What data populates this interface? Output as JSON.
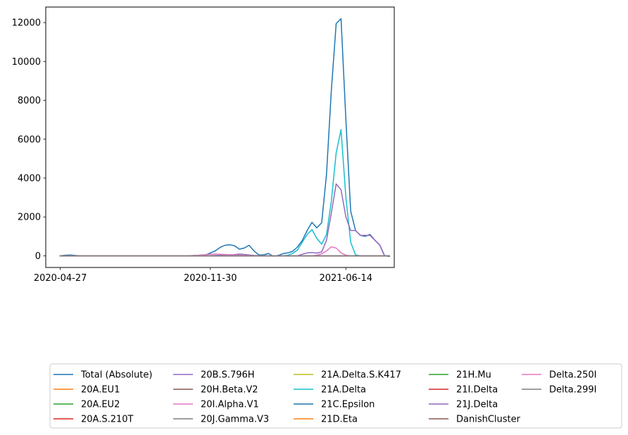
{
  "chart_data": {
    "type": "line",
    "title": "",
    "xlabel": "",
    "ylabel": "",
    "x_tick_labels": [
      "2020-04-27",
      "2020-11-30",
      "2021-06-14"
    ],
    "y_ticks": [
      0,
      2000,
      4000,
      6000,
      8000,
      10000,
      12000
    ],
    "ylim": [
      -600,
      12800
    ],
    "x_range_weeks": [
      -3,
      69
    ],
    "x_start_date": "2020-04-27",
    "grid": false,
    "legend_location": "below the plot, 5 columns",
    "legend_columns": 5,
    "series": [
      {
        "name": "Total (Absolute)",
        "color": "#1f77b4",
        "points": [
          [
            0,
            0
          ],
          [
            1,
            30
          ],
          [
            2,
            40
          ],
          [
            3,
            20
          ],
          [
            4,
            0
          ],
          [
            5,
            0
          ],
          [
            6,
            0
          ],
          [
            7,
            0
          ],
          [
            8,
            0
          ],
          [
            9,
            0
          ],
          [
            10,
            0
          ],
          [
            11,
            0
          ],
          [
            12,
            0
          ],
          [
            13,
            0
          ],
          [
            14,
            0
          ],
          [
            15,
            0
          ],
          [
            16,
            0
          ],
          [
            17,
            0
          ],
          [
            18,
            0
          ],
          [
            19,
            0
          ],
          [
            20,
            0
          ],
          [
            21,
            0
          ],
          [
            22,
            0
          ],
          [
            23,
            0
          ],
          [
            24,
            0
          ],
          [
            25,
            0
          ],
          [
            26,
            0
          ],
          [
            27,
            0
          ],
          [
            28,
            20
          ],
          [
            29,
            20
          ],
          [
            30,
            40
          ],
          [
            31,
            150
          ],
          [
            32,
            250
          ],
          [
            33,
            430
          ],
          [
            34,
            540
          ],
          [
            35,
            570
          ],
          [
            36,
            520
          ],
          [
            37,
            340
          ],
          [
            38,
            400
          ],
          [
            39,
            540
          ],
          [
            40,
            260
          ],
          [
            41,
            50
          ],
          [
            42,
            50
          ],
          [
            43,
            120
          ],
          [
            44,
            -20
          ],
          [
            45,
            20
          ],
          [
            46,
            110
          ],
          [
            47,
            150
          ],
          [
            48,
            230
          ],
          [
            49,
            450
          ],
          [
            50,
            790
          ],
          [
            51,
            1300
          ],
          [
            52,
            1720
          ],
          [
            53,
            1440
          ],
          [
            54,
            1700
          ],
          [
            55,
            4200
          ],
          [
            56,
            8500
          ],
          [
            57,
            11950
          ],
          [
            58,
            12200
          ],
          [
            59,
            7000
          ],
          [
            60,
            2300
          ],
          [
            61,
            1300
          ],
          [
            62,
            1050
          ],
          [
            63,
            1000
          ],
          [
            64,
            1100
          ],
          [
            65,
            800
          ],
          [
            66,
            550
          ],
          [
            67,
            0
          ],
          [
            68,
            -30
          ]
        ]
      },
      {
        "name": "20A.EU1",
        "color": "#ff7f0e",
        "points": [
          [
            0,
            0
          ],
          [
            68,
            0
          ]
        ]
      },
      {
        "name": "20A.EU2",
        "color": "#2ca02c",
        "points": [
          [
            0,
            0
          ],
          [
            68,
            0
          ]
        ]
      },
      {
        "name": "20A.S.210T",
        "color": "#d62728",
        "points": [
          [
            0,
            0
          ],
          [
            68,
            0
          ]
        ]
      },
      {
        "name": "20B.S.796H",
        "color": "#9467bd",
        "points": [
          [
            0,
            0
          ],
          [
            30,
            0
          ],
          [
            32,
            20
          ],
          [
            34,
            40
          ],
          [
            36,
            60
          ],
          [
            37,
            90
          ],
          [
            38,
            70
          ],
          [
            40,
            20
          ],
          [
            42,
            0
          ],
          [
            68,
            0
          ]
        ]
      },
      {
        "name": "20H.Beta.V2",
        "color": "#8c564b",
        "points": [
          [
            0,
            0
          ],
          [
            68,
            0
          ]
        ]
      },
      {
        "name": "20I.Alpha.V1",
        "color": "#e377c2",
        "points": [
          [
            0,
            0
          ],
          [
            26,
            0
          ],
          [
            28,
            20
          ],
          [
            30,
            60
          ],
          [
            32,
            100
          ],
          [
            34,
            70
          ],
          [
            36,
            40
          ],
          [
            38,
            30
          ],
          [
            40,
            10
          ],
          [
            42,
            0
          ],
          [
            52,
            0
          ],
          [
            53,
            30
          ],
          [
            54,
            100
          ],
          [
            55,
            250
          ],
          [
            56,
            460
          ],
          [
            57,
            400
          ],
          [
            58,
            150
          ],
          [
            59,
            30
          ],
          [
            60,
            0
          ],
          [
            68,
            0
          ]
        ]
      },
      {
        "name": "20J.Gamma.V3",
        "color": "#7f7f7f",
        "points": [
          [
            0,
            0
          ],
          [
            68,
            0
          ]
        ]
      },
      {
        "name": "21A.Delta.S.K417",
        "color": "#bcbd22",
        "points": [
          [
            0,
            0
          ],
          [
            68,
            0
          ]
        ]
      },
      {
        "name": "21A.Delta",
        "color": "#17becf",
        "points": [
          [
            0,
            0
          ],
          [
            46,
            0
          ],
          [
            47,
            30
          ],
          [
            48,
            120
          ],
          [
            49,
            300
          ],
          [
            50,
            700
          ],
          [
            51,
            1100
          ],
          [
            52,
            1350
          ],
          [
            53,
            900
          ],
          [
            54,
            600
          ],
          [
            55,
            1100
          ],
          [
            56,
            2800
          ],
          [
            57,
            5300
          ],
          [
            58,
            6500
          ],
          [
            59,
            3000
          ],
          [
            60,
            700
          ],
          [
            61,
            50
          ],
          [
            62,
            0
          ],
          [
            68,
            0
          ]
        ]
      },
      {
        "name": "21C.Epsilon",
        "color": "#1f77b4",
        "points": [
          [
            0,
            0
          ],
          [
            68,
            0
          ]
        ]
      },
      {
        "name": "21D.Eta",
        "color": "#ff7f0e",
        "points": [
          [
            0,
            0
          ],
          [
            68,
            0
          ]
        ]
      },
      {
        "name": "21H.Mu",
        "color": "#2ca02c",
        "points": [
          [
            0,
            0
          ],
          [
            68,
            0
          ]
        ]
      },
      {
        "name": "21I.Delta",
        "color": "#d62728",
        "points": [
          [
            0,
            0
          ],
          [
            68,
            0
          ]
        ]
      },
      {
        "name": "21J.Delta",
        "color": "#9467bd",
        "points": [
          [
            0,
            0
          ],
          [
            49,
            0
          ],
          [
            50,
            80
          ],
          [
            51,
            150
          ],
          [
            52,
            170
          ],
          [
            53,
            140
          ],
          [
            54,
            200
          ],
          [
            55,
            800
          ],
          [
            56,
            2200
          ],
          [
            57,
            3700
          ],
          [
            58,
            3400
          ],
          [
            59,
            2000
          ],
          [
            60,
            1300
          ],
          [
            61,
            1300
          ],
          [
            62,
            1050
          ],
          [
            63,
            1050
          ],
          [
            64,
            1050
          ],
          [
            65,
            800
          ],
          [
            66,
            550
          ],
          [
            67,
            0
          ],
          [
            68,
            -30
          ]
        ]
      },
      {
        "name": "DanishCluster",
        "color": "#8c564b",
        "points": [
          [
            0,
            0
          ],
          [
            68,
            0
          ]
        ]
      },
      {
        "name": "Delta.250I",
        "color": "#e377c2",
        "points": [
          [
            0,
            0
          ],
          [
            68,
            0
          ]
        ]
      },
      {
        "name": "Delta.299I",
        "color": "#7f7f7f",
        "points": [
          [
            0,
            0
          ],
          [
            68,
            0
          ]
        ]
      }
    ]
  }
}
